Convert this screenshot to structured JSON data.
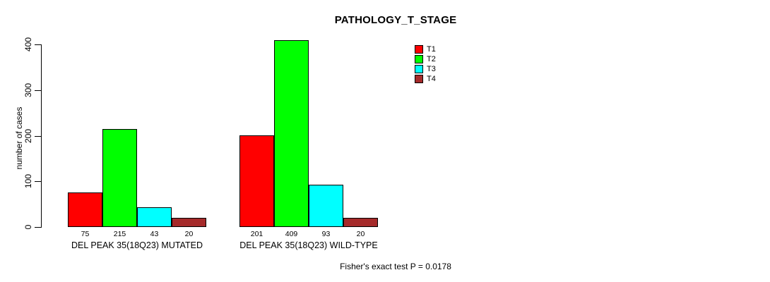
{
  "chart_data": {
    "type": "bar",
    "title": "PATHOLOGY_T_STAGE",
    "ylabel": "number of cases",
    "ylim": [
      0,
      400
    ],
    "yticks": [
      0,
      100,
      200,
      300,
      400
    ],
    "grid": false,
    "legend_position": "top-right",
    "bar_value_labels_shown": true,
    "categories": [
      "DEL PEAK 35(18Q23) MUTATED",
      "DEL PEAK 35(18Q23) WILD-TYPE"
    ],
    "series": [
      {
        "name": "T1",
        "color": "#ff0000",
        "values": [
          75,
          201
        ]
      },
      {
        "name": "T2",
        "color": "#00ff00",
        "values": [
          215,
          409
        ]
      },
      {
        "name": "T3",
        "color": "#00ffff",
        "values": [
          43,
          93
        ]
      },
      {
        "name": "T4",
        "color": "#a52a2a",
        "values": [
          20,
          20
        ]
      }
    ],
    "footnote": "Fisher's exact test P = 0.0178"
  }
}
